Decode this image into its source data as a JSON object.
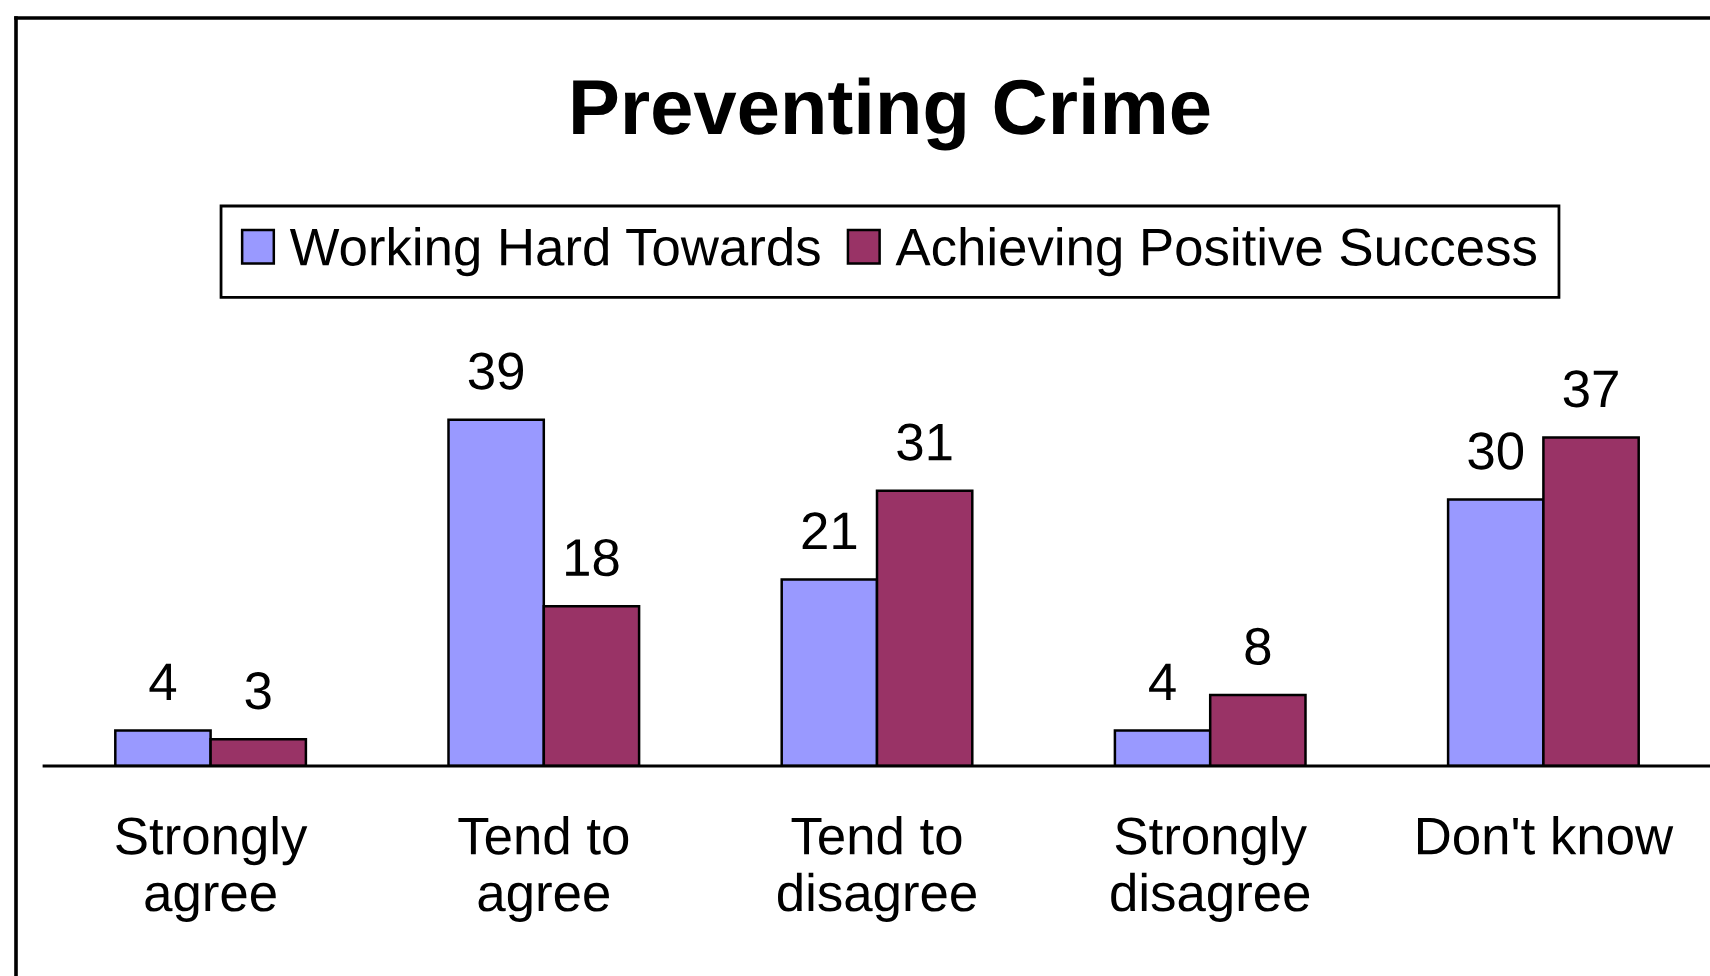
{
  "chart_data": {
    "type": "bar",
    "title": "Preventing Crime",
    "categories": [
      "Strongly\nagree",
      "Tend to\nagree",
      "Tend to\ndisagree",
      "Strongly\ndisagree",
      "Don't know"
    ],
    "series": [
      {
        "name": "Working Hard Towards",
        "color": "#9999ff",
        "values": [
          4,
          39,
          21,
          4,
          30
        ]
      },
      {
        "name": "Achieving Positive Success",
        "color": "#993366",
        "values": [
          3,
          18,
          31,
          8,
          37
        ]
      }
    ],
    "data_labels": true,
    "legend": "top",
    "grid": false
  }
}
